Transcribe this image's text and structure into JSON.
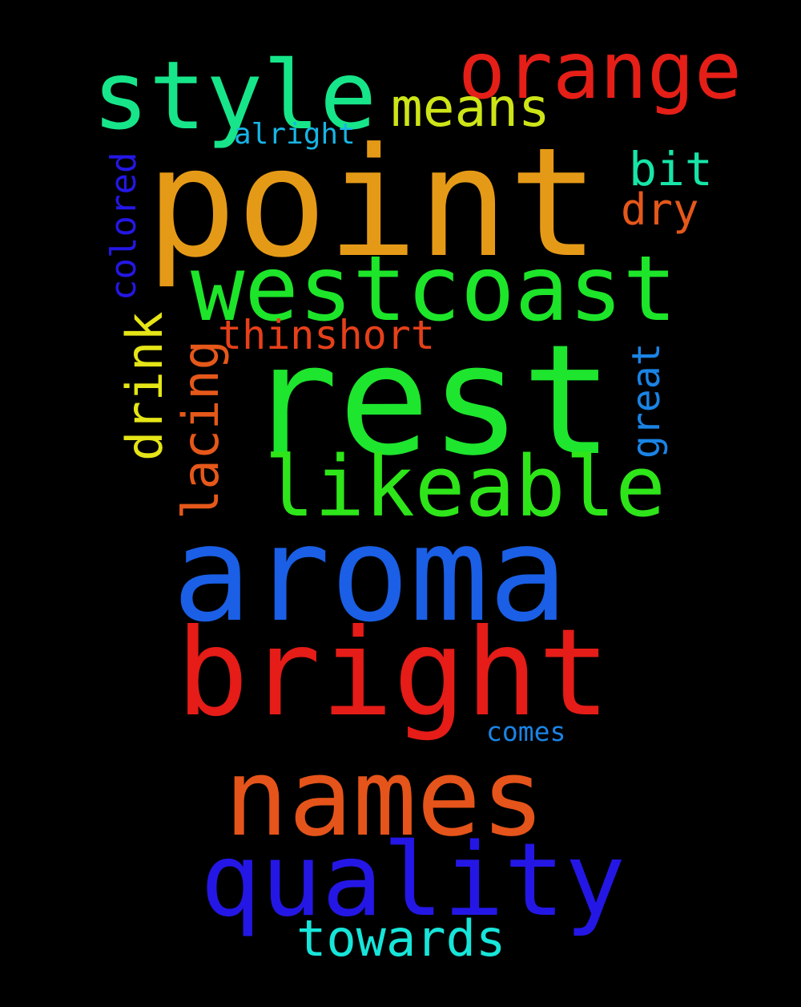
{
  "words": [
    {
      "text": "point",
      "color": "#e59a17"
    },
    {
      "text": "rest",
      "color": "#1ee52e"
    },
    {
      "text": "aroma",
      "color": "#1a5fe5"
    },
    {
      "text": "bright",
      "color": "#e51c17"
    },
    {
      "text": "names",
      "color": "#e5541a"
    },
    {
      "text": "quality",
      "color": "#2417e5"
    },
    {
      "text": "westcoast",
      "color": "#1de52a"
    },
    {
      "text": "likeable",
      "color": "#2ee51a"
    },
    {
      "text": "style",
      "color": "#17e58a"
    },
    {
      "text": "orange",
      "color": "#e51f17"
    },
    {
      "text": "means",
      "color": "#cde517"
    },
    {
      "text": "bit",
      "color": "#17e5a8"
    },
    {
      "text": "dry",
      "color": "#e5581a"
    },
    {
      "text": "thinshort",
      "color": "#e5401a"
    },
    {
      "text": "lacing",
      "color": "#e5581a"
    },
    {
      "text": "drink",
      "color": "#e5e517"
    },
    {
      "text": "colored",
      "color": "#2417e5"
    },
    {
      "text": "great",
      "color": "#1a84e5"
    },
    {
      "text": "alright",
      "color": "#17b5e5"
    },
    {
      "text": "comes",
      "color": "#1a84e5"
    },
    {
      "text": "towards",
      "color": "#17e5d9"
    }
  ]
}
